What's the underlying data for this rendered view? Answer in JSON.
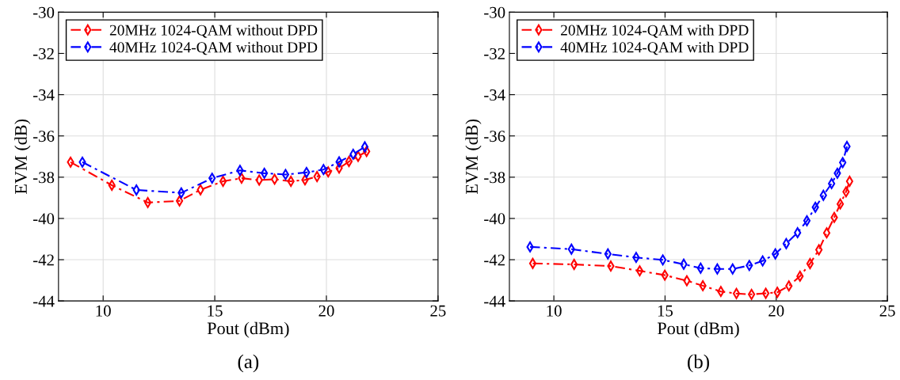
{
  "chart_data": [
    {
      "type": "line",
      "xlabel": "Pout (dBm)",
      "ylabel": "EVM (dB)",
      "annotations": [
        "(a)"
      ],
      "xlim": [
        8,
        25
      ],
      "xticks": [
        10,
        15,
        20,
        25
      ],
      "ylim": [
        -44,
        -30
      ],
      "yticks": [
        -44,
        -42,
        -40,
        -38,
        -36,
        -34,
        -32,
        -30
      ],
      "grid": true,
      "legend": "top left",
      "marker": "diamond",
      "line_style": "dashed",
      "series": [
        {
          "name": "20MHz 1024-QAM without DPD",
          "color": "#ff0000",
          "x": [
            8.54,
            10.39,
            12.0,
            13.42,
            14.36,
            15.37,
            16.2,
            16.99,
            17.68,
            18.41,
            19.04,
            19.58,
            20.08,
            20.57,
            21.01,
            21.42,
            21.8
          ],
          "values": [
            -37.27,
            -38.39,
            -39.23,
            -39.15,
            -38.61,
            -38.2,
            -38.05,
            -38.14,
            -38.1,
            -38.2,
            -38.13,
            -37.97,
            -37.74,
            -37.56,
            -37.24,
            -36.99,
            -36.75
          ]
        },
        {
          "name": "40MHz 1024-QAM without DPD",
          "color": "#0000ff",
          "x": [
            9.07,
            11.49,
            13.5,
            14.88,
            16.13,
            17.22,
            18.17,
            19.11,
            19.87,
            20.57,
            21.2,
            21.72
          ],
          "values": [
            -37.27,
            -38.62,
            -38.76,
            -38.05,
            -37.67,
            -37.81,
            -37.87,
            -37.77,
            -37.63,
            -37.26,
            -36.89,
            -36.53
          ]
        }
      ]
    },
    {
      "type": "line",
      "xlabel": "Pout (dBm)",
      "ylabel": "EVM (dB)",
      "annotations": [
        "(b)"
      ],
      "xlim": [
        8,
        25
      ],
      "xticks": [
        10,
        15,
        20,
        25
      ],
      "ylim": [
        -44,
        -30
      ],
      "yticks": [
        -44,
        -42,
        -40,
        -38,
        -36,
        -34,
        -32,
        -30
      ],
      "grid": true,
      "legend": "top left",
      "marker": "diamond",
      "line_style": "dashed",
      "series": [
        {
          "name": "20MHz 1024-QAM with DPD",
          "color": "#ff0000",
          "x": [
            9.05,
            10.91,
            12.56,
            13.86,
            14.99,
            15.98,
            16.7,
            17.51,
            18.21,
            18.89,
            19.53,
            20.05,
            20.57,
            21.07,
            21.52,
            21.92,
            22.27,
            22.61,
            22.88,
            23.14,
            23.3
          ],
          "values": [
            -42.18,
            -42.23,
            -42.31,
            -42.54,
            -42.75,
            -43.02,
            -43.26,
            -43.54,
            -43.64,
            -43.68,
            -43.63,
            -43.58,
            -43.27,
            -42.8,
            -42.19,
            -41.52,
            -40.7,
            -39.95,
            -39.3,
            -38.71,
            -38.2
          ]
        },
        {
          "name": "40MHz 1024-QAM with DPD",
          "color": "#0000ff",
          "x": [
            8.93,
            10.79,
            12.43,
            13.7,
            14.9,
            15.84,
            16.6,
            17.35,
            18.04,
            18.79,
            19.39,
            19.96,
            20.45,
            20.96,
            21.38,
            21.76,
            22.12,
            22.49,
            22.75,
            22.99,
            23.18
          ],
          "values": [
            -41.38,
            -41.49,
            -41.72,
            -41.89,
            -42.01,
            -42.22,
            -42.41,
            -42.45,
            -42.45,
            -42.28,
            -42.06,
            -41.72,
            -41.22,
            -40.69,
            -40.11,
            -39.46,
            -38.88,
            -38.31,
            -37.81,
            -37.29,
            -36.51
          ]
        }
      ]
    }
  ]
}
